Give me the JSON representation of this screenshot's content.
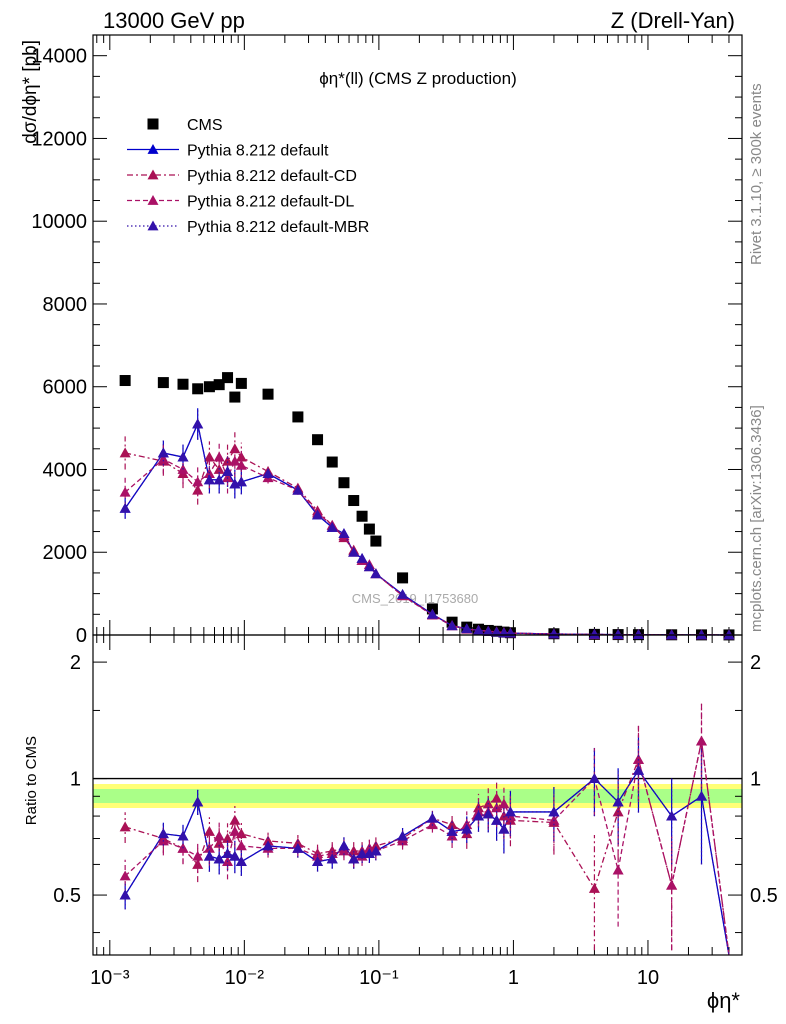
{
  "header": {
    "left": "13000 GeV pp",
    "right": "Z (Drell-Yan)"
  },
  "side": {
    "rivet": "Rivet 3.1.10, ≥ 300k events",
    "mcplots": "mcplots.cern.ch [arXiv:1306.3436]"
  },
  "watermark": "CMS_2019_I1753680",
  "chart_data": [
    {
      "type": "scatter",
      "title": "ϕη*(ll) (CMS Z production)",
      "ylabel": "dσ/dϕη* [pb]",
      "xscale": "log",
      "xlim": [
        0.00075,
        50
      ],
      "ylim": [
        0,
        14500
      ],
      "yticks": [
        0,
        2000,
        4000,
        6000,
        8000,
        10000,
        12000,
        14000
      ],
      "ytick_labels": [
        "0",
        "2000",
        "4000",
        "6000",
        "8000",
        "10000",
        "12000",
        "14000"
      ],
      "legend_position": "top-left",
      "series": [
        {
          "name": "CMS",
          "color": "#000000",
          "marker": "square",
          "x": [
            0.0013,
            0.0025,
            0.0035,
            0.0045,
            0.0055,
            0.0065,
            0.0075,
            0.0085,
            0.0095,
            0.015,
            0.025,
            0.035,
            0.045,
            0.055,
            0.065,
            0.075,
            0.085,
            0.095,
            0.15,
            0.25,
            0.35,
            0.45,
            0.55,
            0.65,
            0.75,
            0.85,
            0.95,
            2,
            4,
            6,
            8.5,
            15,
            25,
            40
          ],
          "y": [
            6150,
            6100,
            6060,
            5950,
            6000,
            6050,
            6220,
            5750,
            6080,
            5820,
            5270,
            4720,
            4180,
            3680,
            3250,
            2870,
            2560,
            2270,
            1380,
            630,
            310,
            190,
            140,
            110,
            90,
            70,
            55,
            30,
            15,
            10,
            8,
            5,
            3,
            2
          ]
        },
        {
          "name": "Pythia 8.212 default",
          "color": "#0000cc",
          "line": "solid",
          "marker": "triangle",
          "x": [
            0.0013,
            0.0025,
            0.0035,
            0.0045,
            0.0055,
            0.0065,
            0.0075,
            0.0085,
            0.0095,
            0.015,
            0.025,
            0.035,
            0.045,
            0.055,
            0.065,
            0.075,
            0.085,
            0.095,
            0.15,
            0.25,
            0.35,
            0.45,
            0.55,
            0.65,
            0.75,
            0.85,
            0.95,
            2,
            4,
            6,
            8.5,
            15,
            25,
            40
          ],
          "y": [
            3060,
            4400,
            4300,
            5100,
            3750,
            3750,
            3950,
            3650,
            3700,
            3900,
            3500,
            2900,
            2600,
            2450,
            2000,
            1850,
            1650,
            1480,
            980,
            500,
            225,
            152,
            112,
            87,
            70,
            52,
            45,
            25,
            15,
            9,
            9,
            4,
            3,
            1
          ],
          "yerr": [
            250,
            300,
            300,
            380,
            330,
            330,
            370,
            350,
            300,
            120,
            100,
            80,
            80,
            70,
            60,
            60,
            50,
            45,
            40,
            20,
            15,
            12,
            10,
            9,
            8,
            7,
            6,
            4,
            3,
            2,
            2,
            1,
            1,
            1
          ],
          "ratio": [
            0.5,
            0.72,
            0.71,
            0.87,
            0.63,
            0.62,
            0.64,
            0.63,
            0.61,
            0.67,
            0.66,
            0.61,
            0.62,
            0.67,
            0.62,
            0.64,
            0.64,
            0.65,
            0.71,
            0.79,
            0.73,
            0.74,
            0.8,
            0.81,
            0.78,
            0.74,
            0.82,
            0.82,
            1.0,
            0.87,
            1.05,
            0.8,
            0.9,
            0.3
          ]
        },
        {
          "name": "Pythia 8.212 default-CD",
          "color": "#aa1155",
          "line": "dashdot",
          "marker": "triangle",
          "x": [
            0.0013,
            0.0025,
            0.0035,
            0.0045,
            0.0055,
            0.0065,
            0.0075,
            0.0085,
            0.0095,
            0.015,
            0.025,
            0.035,
            0.045,
            0.055,
            0.065,
            0.075,
            0.085,
            0.095,
            0.15,
            0.25,
            0.35,
            0.45,
            0.55,
            0.65,
            0.75,
            0.85,
            0.95,
            2,
            4,
            6,
            8.5,
            15,
            25,
            40
          ],
          "y": [
            4400,
            4200,
            3900,
            3500,
            4300,
            4000,
            4200,
            4500,
            4300,
            3950,
            3550,
            3000,
            2650,
            2350,
            2050,
            1800,
            1650,
            1480,
            950,
            500,
            230,
            140,
            115,
            92,
            77,
            55,
            42,
            23,
            8,
            8,
            9,
            3,
            4,
            1
          ],
          "yerr": [
            400,
            350,
            350,
            350,
            380,
            380,
            400,
            400,
            350,
            150,
            110,
            90,
            80,
            70,
            60,
            60,
            50,
            45,
            40,
            20,
            15,
            12,
            10,
            9,
            8,
            7,
            6,
            4,
            3,
            2,
            2,
            1,
            1,
            1
          ],
          "ratio": [
            0.75,
            0.7,
            0.66,
            0.6,
            0.73,
            0.68,
            0.7,
            0.78,
            0.72,
            0.69,
            0.68,
            0.64,
            0.65,
            0.66,
            0.65,
            0.65,
            0.66,
            0.67,
            0.7,
            0.79,
            0.76,
            0.72,
            0.84,
            0.86,
            0.89,
            0.8,
            0.78,
            0.77,
            0.52,
            0.82,
            1.12,
            0.53,
            1.25,
            0.3
          ]
        },
        {
          "name": "Pythia 8.212 default-DL",
          "color": "#aa1166",
          "line": "dashed",
          "marker": "triangle",
          "x": [
            0.0013,
            0.0025,
            0.0035,
            0.0045,
            0.0055,
            0.0065,
            0.0075,
            0.0085,
            0.0095,
            0.015,
            0.025,
            0.035,
            0.045,
            0.055,
            0.065,
            0.075,
            0.085,
            0.095,
            0.15,
            0.25,
            0.35,
            0.45,
            0.55,
            0.65,
            0.75,
            0.85,
            0.95,
            2,
            4,
            6,
            8.5,
            15,
            25,
            40
          ],
          "y": [
            3450,
            4250,
            4000,
            3700,
            3900,
            4300,
            3800,
            4200,
            4100,
            3800,
            3500,
            2950,
            2650,
            2400,
            2000,
            1800,
            1700,
            1480,
            950,
            480,
            220,
            145,
            115,
            90,
            75,
            60,
            48,
            24,
            15,
            7,
            9,
            3,
            4,
            1
          ],
          "yerr": [
            350,
            350,
            350,
            350,
            380,
            380,
            380,
            380,
            350,
            140,
            110,
            90,
            80,
            70,
            60,
            60,
            50,
            45,
            40,
            20,
            15,
            12,
            10,
            9,
            8,
            7,
            6,
            4,
            3,
            2,
            2,
            1,
            1,
            1
          ],
          "ratio": [
            0.56,
            0.69,
            0.66,
            0.63,
            0.66,
            0.71,
            0.61,
            0.73,
            0.67,
            0.66,
            0.66,
            0.63,
            0.64,
            0.65,
            0.62,
            0.63,
            0.66,
            0.65,
            0.69,
            0.76,
            0.71,
            0.76,
            0.82,
            0.82,
            0.84,
            0.86,
            0.8,
            0.78,
            1.0,
            0.58,
            1.12,
            0.53,
            1.25,
            0.3
          ]
        },
        {
          "name": "Pythia 8.212 default-MBR",
          "color": "#3311aa",
          "line": "dotted",
          "marker": "triangle",
          "x": [
            0.0013,
            0.0025,
            0.0035,
            0.0045,
            0.0055,
            0.0065,
            0.0075,
            0.0085,
            0.0095,
            0.015,
            0.025,
            0.035,
            0.045,
            0.055,
            0.065,
            0.075,
            0.085,
            0.095,
            0.15,
            0.25,
            0.35,
            0.45,
            0.55,
            0.65,
            0.75,
            0.85,
            0.95,
            2,
            4,
            6,
            8.5,
            15,
            25,
            40
          ],
          "y": [
            3060,
            4400,
            4300,
            5100,
            3750,
            3750,
            3950,
            3650,
            3700,
            3900,
            3500,
            2900,
            2600,
            2450,
            2000,
            1850,
            1650,
            1480,
            980,
            500,
            225,
            152,
            112,
            87,
            70,
            52,
            45,
            25,
            15,
            9,
            9,
            4,
            3,
            1
          ],
          "yerr": [
            250,
            300,
            300,
            380,
            330,
            330,
            370,
            350,
            300,
            120,
            100,
            80,
            80,
            70,
            60,
            60,
            50,
            45,
            40,
            20,
            15,
            12,
            10,
            9,
            8,
            7,
            6,
            4,
            3,
            2,
            2,
            1,
            1,
            1
          ],
          "ratio": [
            0.5,
            0.72,
            0.71,
            0.87,
            0.63,
            0.62,
            0.64,
            0.63,
            0.61,
            0.67,
            0.66,
            0.61,
            0.62,
            0.67,
            0.62,
            0.64,
            0.64,
            0.65,
            0.71,
            0.79,
            0.73,
            0.74,
            0.8,
            0.81,
            0.78,
            0.74,
            0.82,
            0.82,
            1.0,
            0.87,
            1.05,
            0.8,
            0.9,
            0.3
          ]
        }
      ]
    },
    {
      "type": "line",
      "ylabel": "Ratio to CMS",
      "xlabel": "ϕη*",
      "xscale": "log",
      "xlim": [
        0.00075,
        50
      ],
      "ylim": [
        0.35,
        2.35
      ],
      "yticks": [
        0.5,
        1,
        2
      ],
      "ytick_labels": [
        "0.5",
        "1",
        "2"
      ],
      "xticks": [
        0.001,
        0.01,
        0.1,
        1,
        10
      ],
      "xtick_labels": [
        "10⁻³",
        "10⁻²",
        "10⁻¹",
        "1",
        "10"
      ],
      "reference_line": 1,
      "uncertainty_band_colors": [
        "#ffff77",
        "#aaff88"
      ]
    }
  ]
}
